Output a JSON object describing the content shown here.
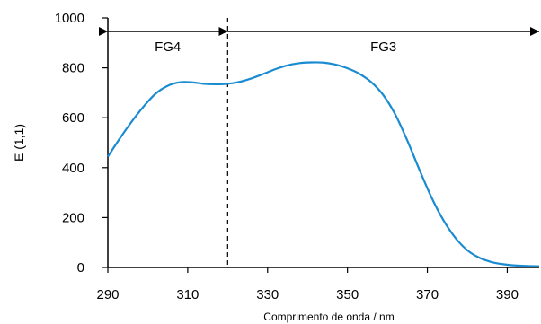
{
  "chart_data": {
    "type": "line",
    "title": "",
    "xlabel": "Comprimento de onda / nm",
    "ylabel": "E (1,1)",
    "xlim": [
      290,
      398
    ],
    "ylim": [
      0,
      1000
    ],
    "xticks": [
      290,
      310,
      330,
      350,
      370,
      390
    ],
    "yticks": [
      0,
      200,
      400,
      600,
      800,
      1000
    ],
    "xtick_labels": [
      "290",
      "310",
      "330",
      "350",
      "370",
      "390"
    ],
    "ytick_labels": [
      "0",
      "200",
      "400",
      "600",
      "800",
      "1000"
    ],
    "grid": false,
    "series": [
      {
        "color": "#1a8bd1",
        "x": [
          290,
          293,
          296,
          299,
          302,
          305,
          308,
          311,
          314,
          317,
          320,
          323,
          326,
          329,
          332,
          335,
          338,
          341,
          344,
          347,
          350,
          353,
          356,
          359,
          362,
          365,
          368,
          371,
          374,
          377,
          380,
          383,
          386,
          389,
          392,
          395,
          398
        ],
        "y": [
          444,
          517,
          585,
          646,
          697,
          728,
          742,
          742,
          736,
          734,
          736,
          744,
          758,
          776,
          795,
          810,
          819,
          822,
          821,
          813,
          798,
          776,
          742,
          690,
          612,
          508,
          392,
          282,
          190,
          119,
          69,
          39,
          22,
          13,
          8,
          6,
          5
        ]
      }
    ],
    "annotations": {
      "divider_x": 320,
      "regions": [
        {
          "label": "FG4",
          "from": 290,
          "to": 320
        },
        {
          "label": "FG3",
          "from": 320,
          "to": 398
        }
      ]
    }
  }
}
